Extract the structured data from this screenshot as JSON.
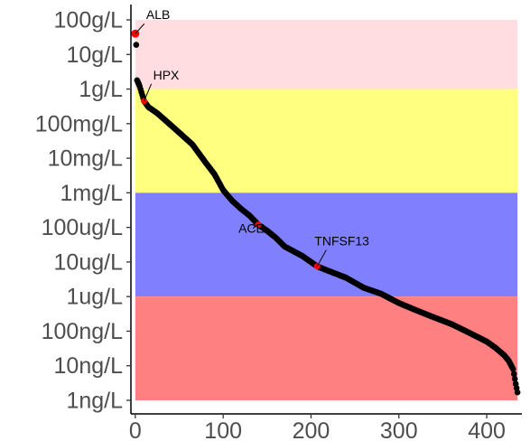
{
  "chart_data": {
    "type": "scatter",
    "title": "",
    "xlabel": "",
    "ylabel": "",
    "xlim": [
      -5,
      440
    ],
    "ylim": [
      1e-09,
      100
    ],
    "log_y": true,
    "x_ticks": [
      0,
      100,
      200,
      300,
      400
    ],
    "y_ticks": [
      {
        "value": 100,
        "label": "100g/L"
      },
      {
        "value": 10,
        "label": "10g/L"
      },
      {
        "value": 1,
        "label": "1g/L"
      },
      {
        "value": 0.1,
        "label": "100mg/L"
      },
      {
        "value": 0.01,
        "label": "10mg/L"
      },
      {
        "value": 0.001,
        "label": "1mg/L"
      },
      {
        "value": 0.0001,
        "label": "100ug/L"
      },
      {
        "value": 1e-05,
        "label": "10ug/L"
      },
      {
        "value": 1e-06,
        "label": "1ug/L"
      },
      {
        "value": 1e-07,
        "label": "100ng/L"
      },
      {
        "value": 1e-08,
        "label": "10ng/L"
      },
      {
        "value": 1e-09,
        "label": "1ng/L"
      }
    ],
    "bands": [
      {
        "from": 1,
        "to": 100,
        "color": "#ffdde1"
      },
      {
        "from": 0.001,
        "to": 1,
        "color": "#ffff80"
      },
      {
        "from": 1e-06,
        "to": 0.001,
        "color": "#8080ff"
      },
      {
        "from": 1e-09,
        "to": 1e-06,
        "color": "#ff8080"
      }
    ],
    "series_color": "#000000",
    "highlight_color": "#ff0000",
    "anchors": [
      [
        0,
        40
      ],
      [
        1,
        19
      ],
      [
        2,
        1.8
      ],
      [
        5,
        1.2
      ],
      [
        10,
        0.45
      ],
      [
        15,
        0.3
      ],
      [
        25,
        0.2
      ],
      [
        35,
        0.12
      ],
      [
        50,
        0.055
      ],
      [
        65,
        0.025
      ],
      [
        80,
        0.0075
      ],
      [
        90,
        0.0035
      ],
      [
        100,
        0.0012
      ],
      [
        110,
        0.0006
      ],
      [
        120,
        0.00035
      ],
      [
        130,
        0.00022
      ],
      [
        140,
        0.00012
      ],
      [
        150,
        8e-05
      ],
      [
        160,
        5e-05
      ],
      [
        170,
        2.8e-05
      ],
      [
        190,
        1.5e-05
      ],
      [
        207,
        7.5e-06
      ],
      [
        220,
        5.5e-06
      ],
      [
        240,
        3.5e-06
      ],
      [
        260,
        1.8e-06
      ],
      [
        280,
        1.2e-06
      ],
      [
        300,
        6.5e-07
      ],
      [
        320,
        4e-07
      ],
      [
        340,
        2.5e-07
      ],
      [
        360,
        1.6e-07
      ],
      [
        380,
        9e-08
      ],
      [
        400,
        5e-08
      ],
      [
        410,
        3.3e-08
      ],
      [
        420,
        2e-08
      ],
      [
        425,
        1.4e-08
      ],
      [
        430,
        8e-09
      ],
      [
        433,
        3e-09
      ],
      [
        435,
        1.7e-09
      ]
    ],
    "highlights": [
      {
        "label": "ALB",
        "x": 0,
        "y": 40
      },
      {
        "label": "HPX",
        "x": 10,
        "y": 0.45
      },
      {
        "label": "ACE",
        "x": 140,
        "y": 0.00012
      },
      {
        "label": "TNFSF13",
        "x": 207,
        "y": 7.5e-06
      }
    ]
  }
}
